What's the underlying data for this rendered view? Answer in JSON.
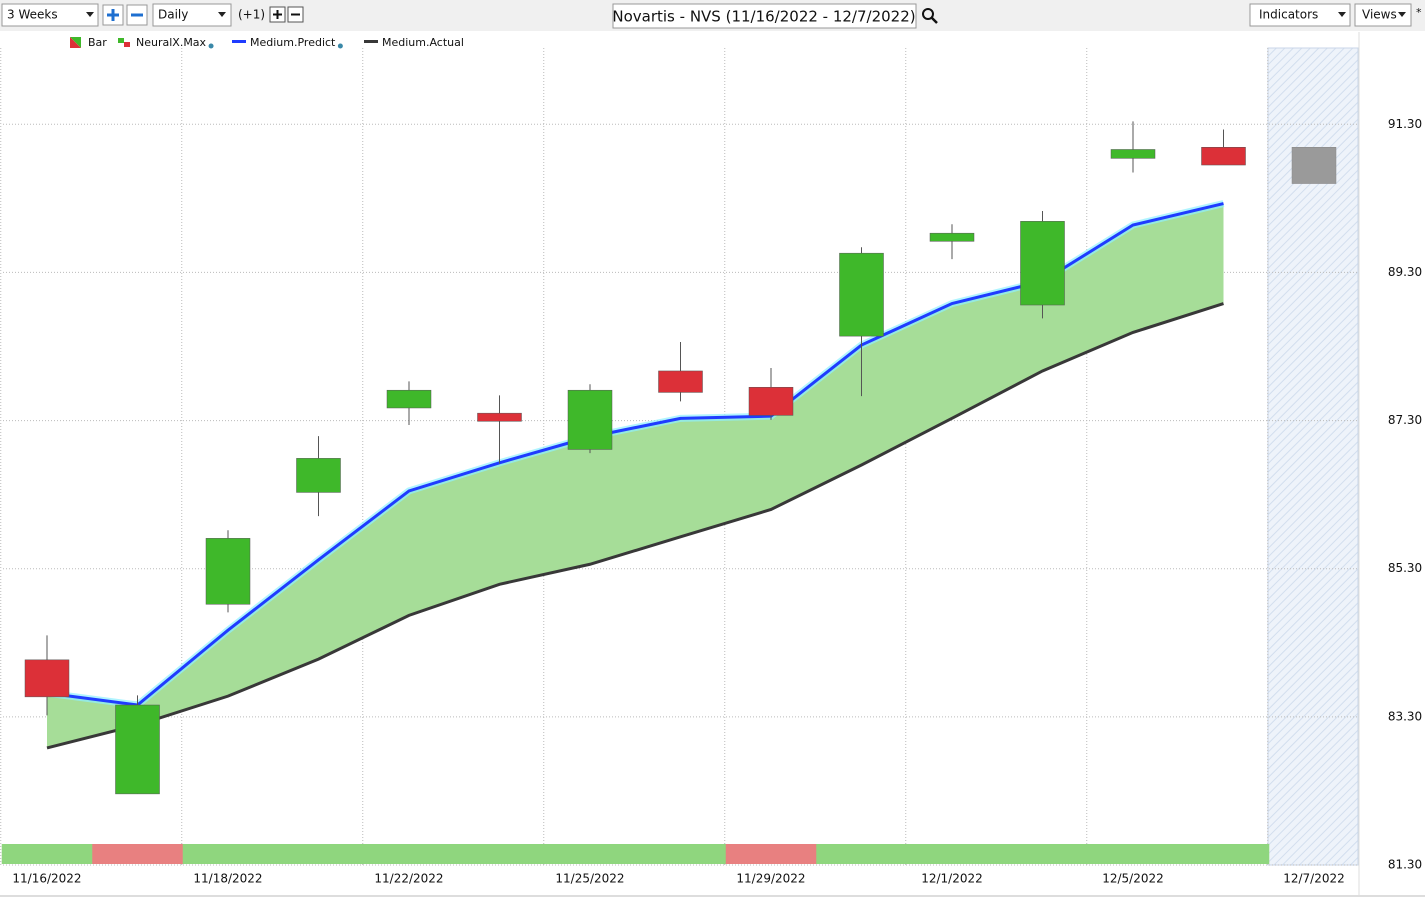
{
  "toolbar": {
    "range": "3 Weeks",
    "interval": "Daily",
    "offset": "(+1)",
    "title": "Novartis - NVS (11/16/2022 - 12/7/2022)",
    "indicators": "Indicators",
    "views": "Views"
  },
  "chart_data": {
    "type": "candlestick",
    "categories": [
      "11/16/2022",
      null,
      "11/18/2022",
      null,
      "11/22/2022",
      null,
      "11/25/2022",
      null,
      "11/29/2022",
      null,
      "12/1/2022",
      null,
      "12/5/2022",
      null,
      "12/7/2022"
    ],
    "candles": {
      "name": "Bar",
      "up_color": "#3fb82a",
      "down_color": "#dc3038",
      "forecast_color": "#9a9a9a",
      "open": [
        84.07,
        82.26,
        84.82,
        86.33,
        87.47,
        87.4,
        86.91,
        87.97,
        87.75,
        88.44,
        89.72,
        88.86,
        90.84,
        90.99,
        90.99
      ],
      "high": [
        84.4,
        83.59,
        85.82,
        87.09,
        87.83,
        87.64,
        87.79,
        88.36,
        88.01,
        89.64,
        89.95,
        90.13,
        91.34,
        91.23,
        null
      ],
      "low": [
        83.32,
        82.26,
        84.71,
        86.01,
        87.24,
        86.72,
        86.86,
        87.56,
        87.31,
        87.63,
        89.48,
        88.68,
        90.65,
        90.75,
        null
      ],
      "close": [
        83.57,
        83.46,
        85.71,
        86.79,
        87.71,
        87.29,
        87.71,
        87.68,
        87.37,
        89.56,
        89.83,
        89.99,
        90.96,
        90.75,
        90.5
      ]
    },
    "signals": {
      "name": "NeuralX.Max",
      "colors": [
        "#8fd67e",
        "#e88080",
        "#8fd67e",
        "#8fd67e",
        "#8fd67e",
        "#8fd67e",
        "#8fd67e",
        "#8fd67e",
        "#e88080",
        "#8fd67e",
        "#8fd67e",
        "#8fd67e",
        "#8fd67e",
        "#8fd67e",
        null
      ]
    },
    "series": [
      {
        "name": "Medium.Predict",
        "color": "#1f3cff",
        "values": [
          83.62,
          83.46,
          84.47,
          85.42,
          86.35,
          86.73,
          87.08,
          87.33,
          87.36,
          88.32,
          88.88,
          89.18,
          89.94,
          90.23,
          null
        ]
      },
      {
        "name": "Medium.Actual",
        "color": "#383838",
        "values": [
          82.88,
          83.19,
          83.58,
          84.08,
          84.67,
          85.09,
          85.36,
          85.73,
          86.1,
          86.7,
          87.33,
          87.97,
          88.49,
          88.88,
          null
        ]
      }
    ],
    "fill_color": "#a6dd98",
    "ylim": [
      81.3,
      92.33
    ],
    "yticks": [
      {
        "value": 81.3,
        "label": "81.30"
      },
      {
        "value": 83.3,
        "label": "83.30"
      },
      {
        "value": 85.3,
        "label": "85.30"
      },
      {
        "value": 87.3,
        "label": "87.30"
      },
      {
        "value": 89.3,
        "label": "89.30"
      },
      {
        "value": 91.3,
        "label": "91.30"
      }
    ],
    "grid": true
  }
}
